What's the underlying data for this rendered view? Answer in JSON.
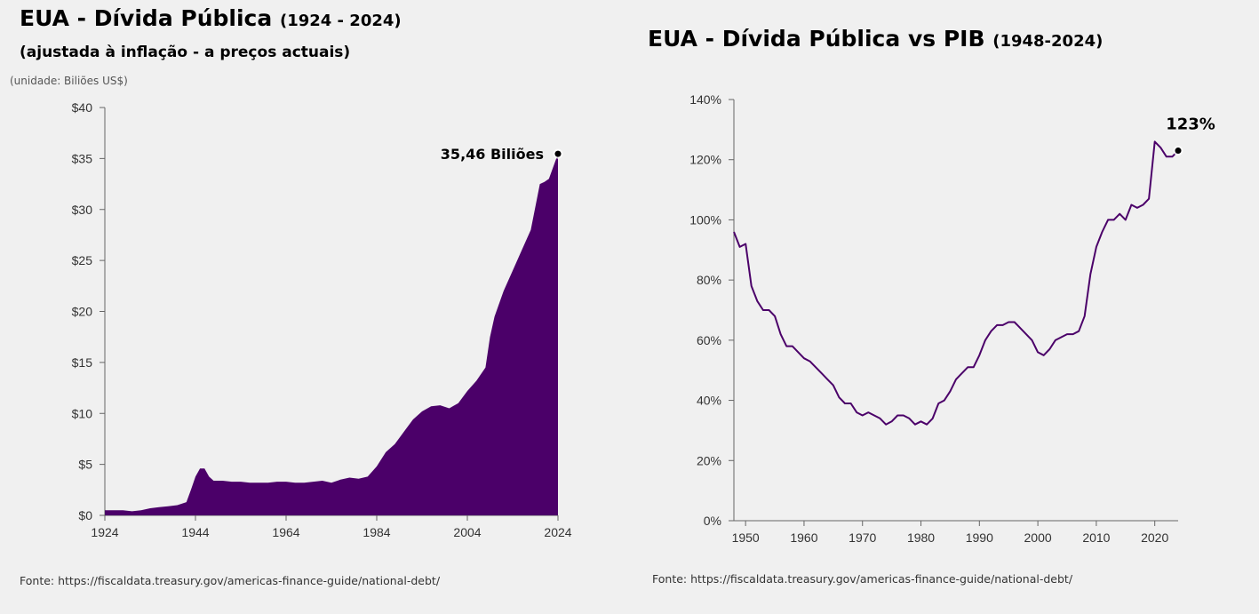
{
  "left": {
    "title": "EUA - Dívida Pública",
    "title_range": "(1924 - 2024)",
    "subtitle": "(ajustada à inflação - a preços actuais)",
    "unit": "(unidade: Biliões US$)",
    "source": "Fonte: https://fiscaldata.treasury.gov/americas-finance-guide/national-debt/"
  },
  "right": {
    "title": "EUA - Dívida Pública vs PIB",
    "title_range": "(1948-2024)",
    "source": "Fonte: https://fiscaldata.treasury.gov/americas-finance-guide/national-debt/"
  },
  "chart_data": [
    {
      "type": "area",
      "title": "EUA - Dívida Pública (1924 - 2024)",
      "ylabel": "(unidade: Biliões US$)",
      "xlim": [
        1924,
        2024
      ],
      "ylim": [
        0,
        40
      ],
      "x_ticks": [
        1924,
        1944,
        1964,
        1984,
        2004,
        2024
      ],
      "y_ticks": [
        0,
        5,
        10,
        15,
        20,
        25,
        30,
        35,
        40
      ],
      "y_tick_labels": [
        "$0",
        "$5",
        "$10",
        "$15",
        "$20",
        "$25",
        "$30",
        "$35",
        "$40"
      ],
      "color": "#4b0069",
      "annotation": {
        "x": 2024,
        "y": 35.46,
        "text": "35,46 Biliões"
      },
      "x": [
        1924,
        1926,
        1928,
        1930,
        1932,
        1934,
        1936,
        1938,
        1940,
        1942,
        1943,
        1944,
        1945,
        1946,
        1947,
        1948,
        1950,
        1952,
        1954,
        1956,
        1958,
        1960,
        1962,
        1964,
        1966,
        1968,
        1970,
        1972,
        1974,
        1976,
        1978,
        1980,
        1982,
        1984,
        1986,
        1988,
        1990,
        1992,
        1994,
        1996,
        1998,
        2000,
        2002,
        2004,
        2006,
        2008,
        2009,
        2010,
        2012,
        2014,
        2016,
        2018,
        2020,
        2021,
        2022,
        2024
      ],
      "y": [
        0.5,
        0.5,
        0.5,
        0.4,
        0.5,
        0.7,
        0.8,
        0.9,
        1.0,
        1.3,
        2.5,
        3.8,
        4.6,
        4.6,
        3.8,
        3.4,
        3.4,
        3.3,
        3.3,
        3.2,
        3.2,
        3.2,
        3.3,
        3.3,
        3.2,
        3.2,
        3.3,
        3.4,
        3.2,
        3.5,
        3.7,
        3.6,
        3.8,
        4.8,
        6.2,
        7.0,
        8.2,
        9.4,
        10.2,
        10.7,
        10.8,
        10.5,
        11.0,
        12.2,
        13.2,
        14.5,
        17.5,
        19.5,
        22.0,
        24.0,
        26.0,
        28.0,
        32.5,
        32.7,
        33.0,
        35.46
      ]
    },
    {
      "type": "line",
      "title": "EUA - Dívida Pública vs PIB (1948-2024)",
      "xlim": [
        1948,
        2024
      ],
      "ylim": [
        0,
        140
      ],
      "x_ticks": [
        1950,
        1960,
        1970,
        1980,
        1990,
        2000,
        2010,
        2020
      ],
      "y_ticks": [
        0,
        20,
        40,
        60,
        80,
        100,
        120,
        140
      ],
      "y_tick_labels": [
        "0%",
        "20%",
        "40%",
        "60%",
        "80%",
        "100%",
        "120%",
        "140%"
      ],
      "color": "#4b0069",
      "annotation": {
        "x": 2024,
        "y": 123,
        "text": "123%"
      },
      "x": [
        1948,
        1949,
        1950,
        1951,
        1952,
        1953,
        1954,
        1955,
        1956,
        1957,
        1958,
        1959,
        1960,
        1961,
        1962,
        1963,
        1964,
        1965,
        1966,
        1967,
        1968,
        1969,
        1970,
        1971,
        1972,
        1973,
        1974,
        1975,
        1976,
        1977,
        1978,
        1979,
        1980,
        1981,
        1982,
        1983,
        1984,
        1985,
        1986,
        1987,
        1988,
        1989,
        1990,
        1991,
        1992,
        1993,
        1994,
        1995,
        1996,
        1997,
        1998,
        1999,
        2000,
        2001,
        2002,
        2003,
        2004,
        2005,
        2006,
        2007,
        2008,
        2009,
        2010,
        2011,
        2012,
        2013,
        2014,
        2015,
        2016,
        2017,
        2018,
        2019,
        2020,
        2021,
        2022,
        2023,
        2024
      ],
      "y": [
        96,
        91,
        92,
        78,
        73,
        70,
        70,
        68,
        62,
        58,
        58,
        56,
        54,
        53,
        51,
        49,
        47,
        45,
        41,
        39,
        39,
        36,
        35,
        36,
        35,
        34,
        32,
        33,
        35,
        35,
        34,
        32,
        33,
        32,
        34,
        39,
        40,
        43,
        47,
        49,
        51,
        51,
        55,
        60,
        63,
        65,
        65,
        66,
        66,
        64,
        62,
        60,
        56,
        55,
        57,
        60,
        61,
        62,
        62,
        63,
        68,
        82,
        91,
        96,
        100,
        100,
        102,
        100,
        105,
        104,
        105,
        107,
        126,
        124,
        121,
        121,
        123
      ]
    }
  ]
}
